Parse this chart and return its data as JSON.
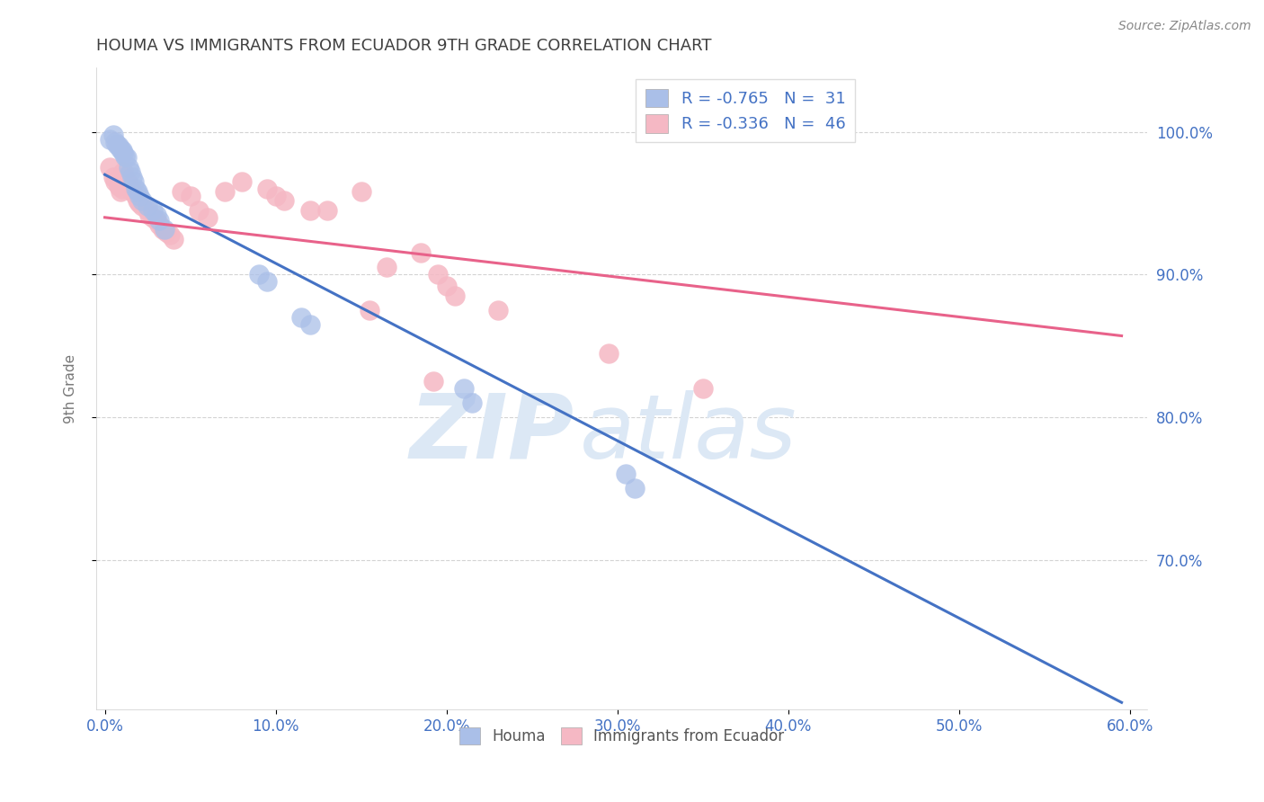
{
  "title": "HOUMA VS IMMIGRANTS FROM ECUADOR 9TH GRADE CORRELATION CHART",
  "source_text": "Source: ZipAtlas.com",
  "ylabel": "9th Grade",
  "xtick_vals": [
    0.0,
    0.1,
    0.2,
    0.3,
    0.4,
    0.5,
    0.6
  ],
  "xtick_labels": [
    "0.0%",
    "10.0%",
    "20.0%",
    "30.0%",
    "40.0%",
    "50.0%",
    "60.0%"
  ],
  "ytick_vals": [
    0.7,
    0.8,
    0.9,
    1.0
  ],
  "ytick_labels": [
    "70.0%",
    "80.0%",
    "90.0%",
    "100.0%"
  ],
  "xlim": [
    -0.005,
    0.61
  ],
  "ylim": [
    0.595,
    1.045
  ],
  "legend_line1": "R = -0.765   N =  31",
  "legend_line2": "R = -0.336   N =  46",
  "houma_scatter_x": [
    0.003,
    0.005,
    0.006,
    0.007,
    0.008,
    0.009,
    0.01,
    0.011,
    0.012,
    0.013,
    0.014,
    0.015,
    0.016,
    0.017,
    0.018,
    0.019,
    0.02,
    0.022,
    0.025,
    0.028,
    0.03,
    0.032,
    0.035,
    0.09,
    0.095,
    0.115,
    0.12,
    0.21,
    0.215,
    0.305,
    0.31
  ],
  "houma_scatter_y": [
    0.995,
    0.998,
    0.993,
    0.991,
    0.99,
    0.988,
    0.987,
    0.985,
    0.983,
    0.982,
    0.975,
    0.972,
    0.968,
    0.965,
    0.96,
    0.958,
    0.955,
    0.952,
    0.948,
    0.945,
    0.942,
    0.938,
    0.932,
    0.9,
    0.895,
    0.87,
    0.865,
    0.82,
    0.81,
    0.76,
    0.75
  ],
  "ecuador_scatter_x": [
    0.003,
    0.005,
    0.006,
    0.008,
    0.009,
    0.01,
    0.011,
    0.012,
    0.013,
    0.015,
    0.016,
    0.018,
    0.019,
    0.02,
    0.022,
    0.025,
    0.026,
    0.028,
    0.03,
    0.032,
    0.034,
    0.036,
    0.038,
    0.04,
    0.045,
    0.05,
    0.055,
    0.06,
    0.07,
    0.08,
    0.095,
    0.1,
    0.105,
    0.12,
    0.13,
    0.15,
    0.155,
    0.165,
    0.185,
    0.192,
    0.195,
    0.2,
    0.205,
    0.23,
    0.295,
    0.35
  ],
  "ecuador_scatter_y": [
    0.975,
    0.968,
    0.965,
    0.962,
    0.958,
    0.96,
    0.972,
    0.968,
    0.965,
    0.962,
    0.958,
    0.955,
    0.952,
    0.95,
    0.948,
    0.945,
    0.942,
    0.94,
    0.938,
    0.935,
    0.932,
    0.93,
    0.928,
    0.925,
    0.958,
    0.955,
    0.945,
    0.94,
    0.958,
    0.965,
    0.96,
    0.955,
    0.952,
    0.945,
    0.945,
    0.958,
    0.875,
    0.905,
    0.915,
    0.825,
    0.9,
    0.892,
    0.885,
    0.875,
    0.845,
    0.82
  ],
  "houma_line_x": [
    0.0,
    0.595
  ],
  "houma_line_y": [
    0.97,
    0.6
  ],
  "ecuador_line_x": [
    0.0,
    0.595
  ],
  "ecuador_line_y": [
    0.94,
    0.857
  ],
  "houma_color": "#aabfe8",
  "ecuador_color": "#f5b8c4",
  "houma_line_color": "#4472c4",
  "ecuador_line_color": "#e8628a",
  "background_color": "#ffffff",
  "grid_color": "#c8c8c8",
  "watermark_zip": "ZIP",
  "watermark_atlas": "atlas",
  "watermark_color": "#dce8f5",
  "title_color": "#404040",
  "axis_label_color": "#777777",
  "tick_color": "#4472c4",
  "source_color": "#888888"
}
